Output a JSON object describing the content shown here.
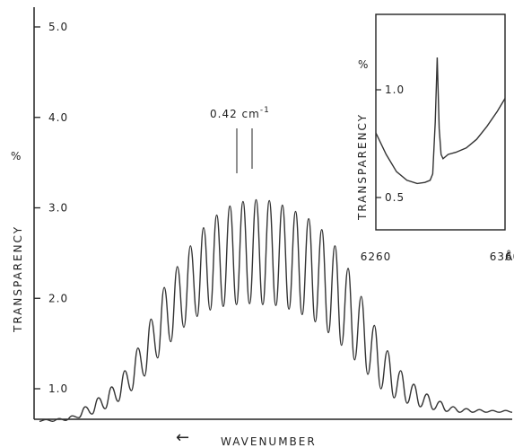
{
  "chart_data": [
    {
      "type": "line",
      "id": "main",
      "xlabel": "WAVENUMBER",
      "xlabel_arrow": "←",
      "ylabel": "TRANSPARENCY",
      "yunit": "%",
      "ylim": [
        0.5,
        5.0
      ],
      "yticks": [
        {
          "value": 1.0,
          "label": "1.0"
        },
        {
          "value": 2.0,
          "label": "2.0"
        },
        {
          "value": 3.0,
          "label": "3.0"
        },
        {
          "value": 4.0,
          "label": "4.0"
        },
        {
          "value": 5.0,
          "label": "5.0"
        }
      ],
      "annotation": {
        "label": "0.42  cm",
        "superscript": "-1"
      },
      "series": [
        {
          "peaks": [
            0.66,
            0.67,
            0.7,
            0.8,
            0.9,
            1.02,
            1.2,
            1.45,
            1.77,
            2.12,
            2.35,
            2.58,
            2.78,
            2.92,
            3.02,
            3.07,
            3.09,
            3.08,
            3.03,
            2.96,
            2.88,
            2.76,
            2.58,
            2.33,
            2.02,
            1.7,
            1.42,
            1.2,
            1.05,
            0.94,
            0.86,
            0.8,
            0.78,
            0.77,
            0.76,
            0.76
          ],
          "troughs": [
            0.64,
            0.64,
            0.65,
            0.68,
            0.72,
            0.78,
            0.86,
            0.98,
            1.14,
            1.34,
            1.52,
            1.68,
            1.8,
            1.87,
            1.91,
            1.93,
            1.94,
            1.93,
            1.92,
            1.88,
            1.82,
            1.74,
            1.62,
            1.48,
            1.32,
            1.16,
            1.0,
            0.9,
            0.84,
            0.8,
            0.77,
            0.75,
            0.74,
            0.74,
            0.74,
            0.74
          ]
        }
      ]
    },
    {
      "type": "line",
      "id": "inset",
      "xlabel": "Å",
      "ylabel": "TRANSPARENCY",
      "yunit": "%",
      "xlim": [
        6260,
        6360
      ],
      "ylim": [
        0.35,
        1.35
      ],
      "xticks": [
        {
          "value": 6260,
          "label": "6260"
        },
        {
          "value": 6360,
          "label": "6360"
        }
      ],
      "yticks": [
        {
          "value": 0.5,
          "label": "0.5"
        },
        {
          "value": 1.0,
          "label": "1.0"
        }
      ],
      "series": [
        {
          "x": [
            6260,
            6268,
            6276,
            6284,
            6292,
            6298,
            6302,
            6304,
            6306,
            6307.5,
            6309,
            6310.5,
            6312,
            6316,
            6322,
            6330,
            6338,
            6346,
            6354,
            6360
          ],
          "y": [
            0.8,
            0.7,
            0.62,
            0.58,
            0.565,
            0.57,
            0.58,
            0.61,
            0.85,
            1.15,
            0.82,
            0.7,
            0.68,
            0.7,
            0.71,
            0.73,
            0.77,
            0.83,
            0.9,
            0.96
          ]
        }
      ]
    }
  ]
}
